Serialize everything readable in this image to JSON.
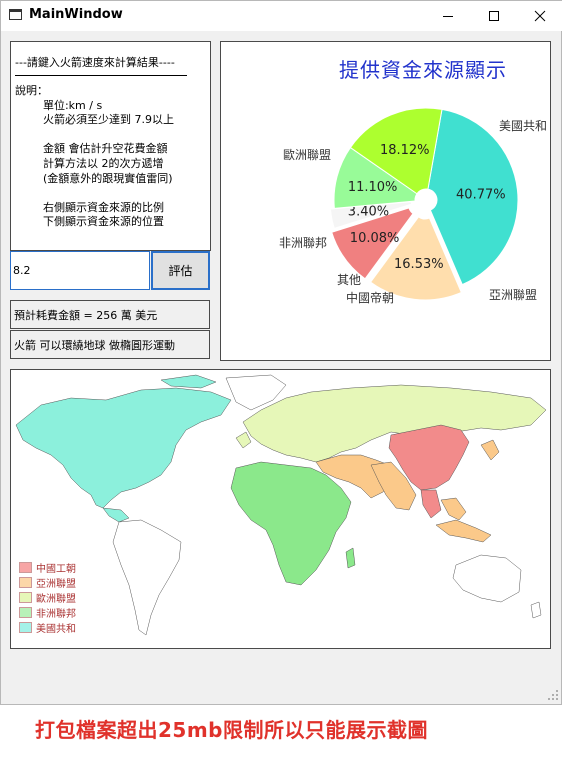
{
  "window": {
    "title": "MainWindow",
    "controls": [
      "minimize-icon",
      "maximize-icon",
      "close-icon"
    ]
  },
  "info": {
    "header": "---請鍵入火箭速度來計算結果----",
    "body": "說明：\n        單位:km / s\n        火箭必須至少達到 7.9以上\n\n        金額 會估計升空花費金額\n        計算方法以 2的次方遞增\n        (金額意外的跟現實值雷同)\n\n        右側顯示資金來源的比例\n        下側顯示資金來源的位置"
  },
  "input": {
    "value": "8.2"
  },
  "evaluate_button": {
    "label": "評估"
  },
  "results": {
    "cost": "預計耗費金額 = 256 萬 美元",
    "orbit": "火箭 可以環繞地球 做橢圓形運動"
  },
  "pie": {
    "title": "提供資金來源顯示"
  },
  "chart_data": {
    "type": "pie",
    "title": "提供資金來源顯示",
    "slices": [
      {
        "label": "美國共和",
        "value": 40.77,
        "display": "40.77%",
        "color": "#40e0d0"
      },
      {
        "label": "亞洲聯盟",
        "value": 16.53,
        "display": "16.53%",
        "color": "#ffdead"
      },
      {
        "label": "中國帝朝",
        "value": 10.08,
        "display": "10.08%",
        "color": "#f08080"
      },
      {
        "label": "其他",
        "value": 3.4,
        "display": "3.40%",
        "color": "#f5f5f5"
      },
      {
        "label": "非洲聯邦",
        "value": 11.1,
        "display": "11.10%",
        "color": "#98fb98"
      },
      {
        "label": "歐洲聯盟",
        "value": 18.12,
        "display": "18.12%",
        "color": "#adff2f"
      }
    ],
    "legend": "none"
  },
  "map": {
    "legend": [
      {
        "label": "中國工朝",
        "color": "#f7a5a5"
      },
      {
        "label": "亞洲聯盟",
        "color": "#fcd7a8"
      },
      {
        "label": "歐洲聯盟",
        "color": "#e6f7b8"
      },
      {
        "label": "非洲聯邦",
        "color": "#b8f2b8"
      },
      {
        "label": "美國共和",
        "color": "#a5f2e8"
      }
    ],
    "region_colors": {
      "china": "#f28b8b",
      "asia": "#fbc98a",
      "europe": "#e6f7b8",
      "africa": "#8be88b",
      "americas": "#8cf0dc",
      "other": "#ffffff"
    }
  },
  "footer": {
    "note": "打包檔案超出25mb限制所以只能展示截圖"
  }
}
